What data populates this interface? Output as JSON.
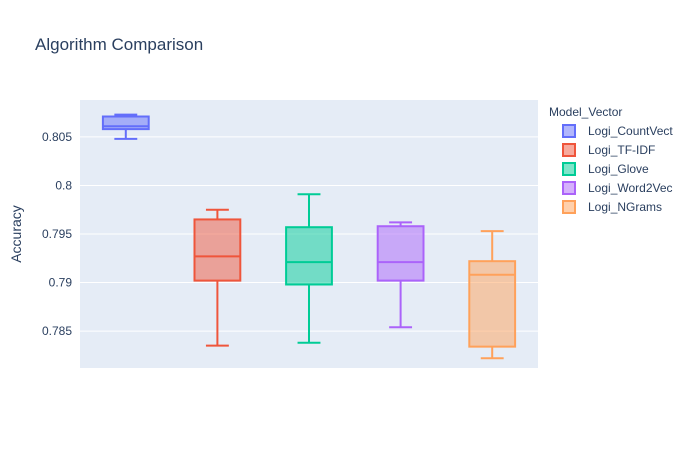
{
  "chart_data": {
    "type": "box",
    "title": "Algorithm Comparison",
    "ylabel": "Accuracy",
    "ylim": [
      0.7812,
      0.8088
    ],
    "yticks": [
      0.785,
      0.79,
      0.795,
      0.8,
      0.805
    ],
    "ytick_labels": [
      "0.785",
      "0.79",
      "0.795",
      "0.8",
      "0.805"
    ],
    "legend_title": "Model_Vector",
    "legend_position": "right",
    "series": [
      {
        "name": "Logi_CountVect",
        "color": "#636efa",
        "fill": "rgba(99,110,250,0.5)",
        "min": 0.8048,
        "q1": 0.8058,
        "median": 0.8061,
        "q3": 0.8071,
        "max": 0.8073
      },
      {
        "name": "Logi_TF-IDF",
        "color": "#ef553b",
        "fill": "rgba(239,85,59,0.5)",
        "min": 0.7835,
        "q1": 0.7902,
        "median": 0.7927,
        "q3": 0.7965,
        "max": 0.7975
      },
      {
        "name": "Logi_Glove",
        "color": "#00cc96",
        "fill": "rgba(0,204,150,0.5)",
        "min": 0.7838,
        "q1": 0.7898,
        "median": 0.7921,
        "q3": 0.7957,
        "max": 0.7991
      },
      {
        "name": "Logi_Word2Vec",
        "color": "#ab63fa",
        "fill": "rgba(171,99,250,0.5)",
        "min": 0.7854,
        "q1": 0.7902,
        "median": 0.7921,
        "q3": 0.7958,
        "max": 0.7962
      },
      {
        "name": "Logi_NGrams",
        "color": "#ffa15a",
        "fill": "rgba(255,161,90,0.5)",
        "min": 0.7822,
        "q1": 0.7834,
        "median": 0.7908,
        "q3": 0.7922,
        "max": 0.7953
      }
    ]
  }
}
